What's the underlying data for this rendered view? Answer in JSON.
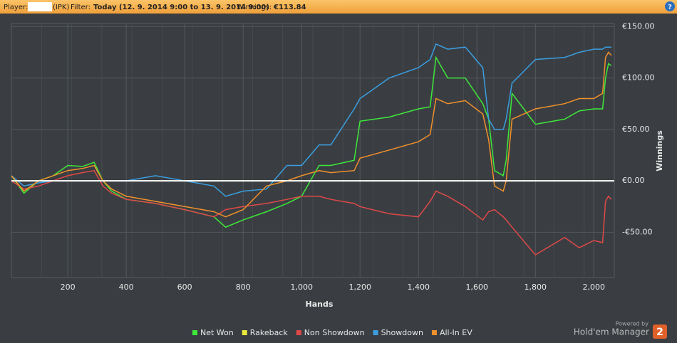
{
  "header": {
    "player_label": "Player:",
    "player_suffix": "(IPK)",
    "filter_label": "Filter:",
    "filter_value": "Today (12. 9. 2014 9:00 to 13. 9. 2014 9:00)",
    "winnings_label": "Winnings:",
    "winnings_value": "€113.84",
    "help": "?"
  },
  "branding": {
    "powered": "Powered by",
    "product": "Hold'em Manager",
    "version": "2"
  },
  "chart_data": {
    "type": "line",
    "x_label": "Hands",
    "y_label": "Winnings",
    "x": [
      7,
      50,
      100,
      150,
      200,
      250,
      290,
      320,
      350,
      400,
      500,
      600,
      700,
      740,
      800,
      880,
      950,
      1000,
      1060,
      1100,
      1180,
      1200,
      1300,
      1400,
      1440,
      1460,
      1500,
      1560,
      1620,
      1640,
      1660,
      1690,
      1700,
      1720,
      1800,
      1900,
      1950,
      2000,
      2030,
      2040,
      2050,
      2060
    ],
    "series": [
      {
        "name": "Net Won",
        "color": "#3ee83a",
        "values": [
          5,
          -12,
          0,
          5,
          15,
          14,
          18,
          0,
          -10,
          -18,
          -22,
          -28,
          -35,
          -45,
          -38,
          -30,
          -22,
          -15,
          15,
          15,
          20,
          58,
          62,
          70,
          72,
          120,
          100,
          100,
          75,
          60,
          10,
          5,
          20,
          85,
          55,
          60,
          68,
          70,
          70,
          100,
          114,
          112
        ]
      },
      {
        "name": "Rakeback",
        "color": "#e8e83a",
        "values": [
          0,
          0,
          0,
          0,
          0,
          0,
          0,
          0,
          0,
          0,
          0,
          0,
          0,
          0,
          0,
          0,
          0,
          0,
          0,
          0,
          0,
          0,
          0,
          0,
          0,
          0,
          0,
          0,
          0,
          0,
          0,
          0,
          0,
          0,
          0,
          0,
          0,
          0,
          0,
          0,
          0,
          0
        ]
      },
      {
        "name": "Non Showdown",
        "color": "#e04848",
        "values": [
          0,
          -8,
          -5,
          0,
          5,
          8,
          10,
          -5,
          -12,
          -18,
          -22,
          -28,
          -35,
          -28,
          -25,
          -22,
          -18,
          -15,
          -15,
          -18,
          -22,
          -25,
          -32,
          -35,
          -20,
          -10,
          -15,
          -25,
          -38,
          -30,
          -28,
          -35,
          -38,
          -45,
          -72,
          -55,
          -65,
          -58,
          -60,
          -20,
          -15,
          -18
        ]
      },
      {
        "name": "Showdown",
        "color": "#3a9ee0",
        "values": [
          5,
          -5,
          -2,
          0,
          0,
          0,
          0,
          0,
          0,
          0,
          5,
          0,
          -5,
          -15,
          -10,
          -8,
          15,
          15,
          35,
          35,
          70,
          80,
          100,
          110,
          118,
          133,
          128,
          130,
          110,
          60,
          50,
          50,
          60,
          95,
          118,
          120,
          125,
          128,
          128,
          130,
          130,
          130
        ]
      },
      {
        "name": "All-In EV",
        "color": "#f0902c",
        "values": [
          5,
          -10,
          0,
          5,
          10,
          12,
          15,
          0,
          -8,
          -15,
          -20,
          -25,
          -30,
          -35,
          -28,
          -5,
          0,
          5,
          10,
          8,
          10,
          22,
          30,
          38,
          45,
          80,
          75,
          78,
          65,
          40,
          -5,
          -10,
          0,
          60,
          70,
          75,
          80,
          80,
          85,
          120,
          125,
          122
        ]
      }
    ],
    "xlim": [
      7,
      2070
    ],
    "ylim": [
      -94,
      153
    ],
    "xticks": [
      200,
      400,
      600,
      800,
      {
        "value": 1000,
        "label": "1,000"
      },
      {
        "value": 1200,
        "label": "1,200"
      },
      {
        "value": 1400,
        "label": "1,400"
      },
      {
        "value": 1600,
        "label": "1,600"
      },
      {
        "value": 1800,
        "label": "1,800"
      },
      {
        "value": 2000,
        "label": "2,000"
      }
    ],
    "yticks": [
      {
        "value": -50,
        "label": "-€50.00"
      },
      {
        "value": 0,
        "label": "€0.00"
      },
      {
        "value": 50,
        "label": "€50.00"
      },
      {
        "value": 100,
        "label": "€100.00"
      },
      {
        "value": 150,
        "label": "€150.00"
      }
    ],
    "grid": true,
    "zero_line_color": "#ffffff"
  }
}
